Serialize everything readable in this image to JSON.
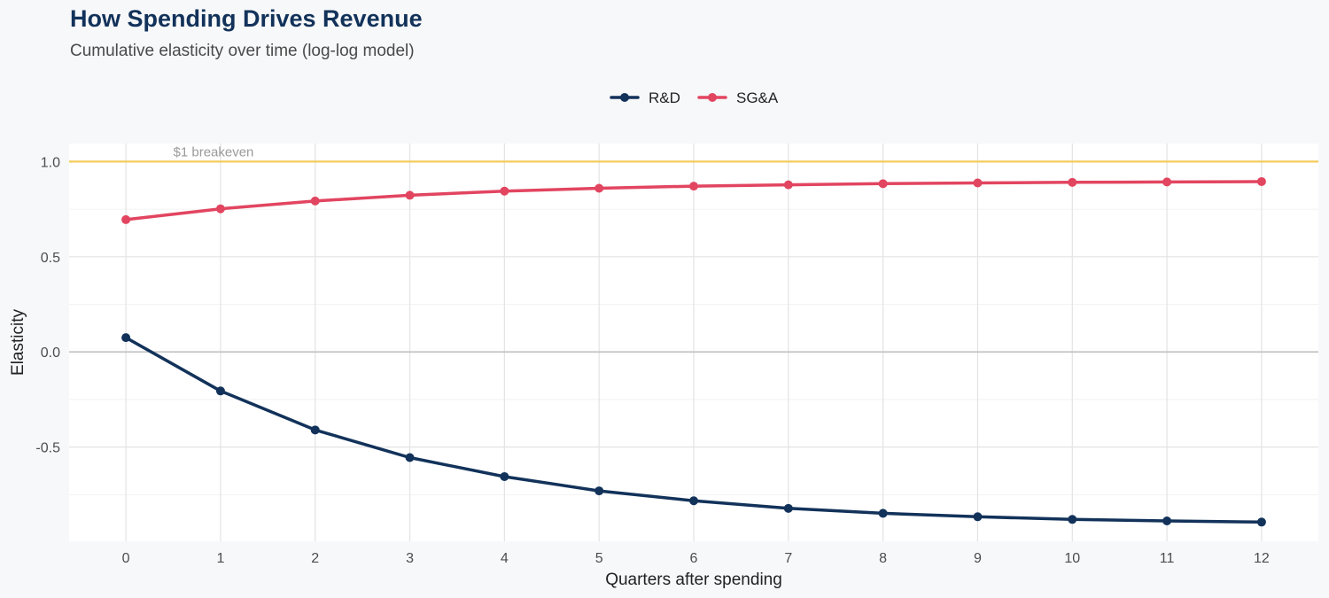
{
  "chart_data": {
    "type": "line",
    "title": "How Spending Drives Revenue",
    "subtitle": "Cumulative elasticity over time (log-log model)",
    "xlabel": "Quarters after spending",
    "ylabel": "Elasticity",
    "x": [
      0,
      1,
      2,
      3,
      4,
      5,
      6,
      7,
      8,
      9,
      10,
      11,
      12
    ],
    "x_tick_labels": [
      "0",
      "1",
      "2",
      "3",
      "4",
      "5",
      "6",
      "7",
      "8",
      "9",
      "10",
      "11",
      "12"
    ],
    "xlim": [
      -0.6,
      12.6
    ],
    "ylim": [
      -0.995,
      1.095
    ],
    "y_ticks": [
      1.0,
      0.5,
      0.0,
      -0.5
    ],
    "y_tick_labels": [
      "1.0",
      "0.5",
      "0.0",
      "-0.5"
    ],
    "grid": true,
    "legend_position": "top-center",
    "series": [
      {
        "name": "R&D",
        "color": "#12325a",
        "values": [
          0.075,
          -0.205,
          -0.41,
          -0.555,
          -0.655,
          -0.73,
          -0.782,
          -0.822,
          -0.848,
          -0.866,
          -0.88,
          -0.888,
          -0.894
        ]
      },
      {
        "name": "SG&A",
        "color": "#e24560",
        "values": [
          0.695,
          0.752,
          0.793,
          0.823,
          0.845,
          0.86,
          0.871,
          0.878,
          0.884,
          0.888,
          0.891,
          0.893,
          0.895
        ]
      }
    ],
    "reference_lines": [
      {
        "y": 1.0,
        "label": "$1 breakeven",
        "color": "#f3cb5a"
      },
      {
        "y": 0.0,
        "label": "",
        "color": "#c4c4c4"
      }
    ]
  }
}
